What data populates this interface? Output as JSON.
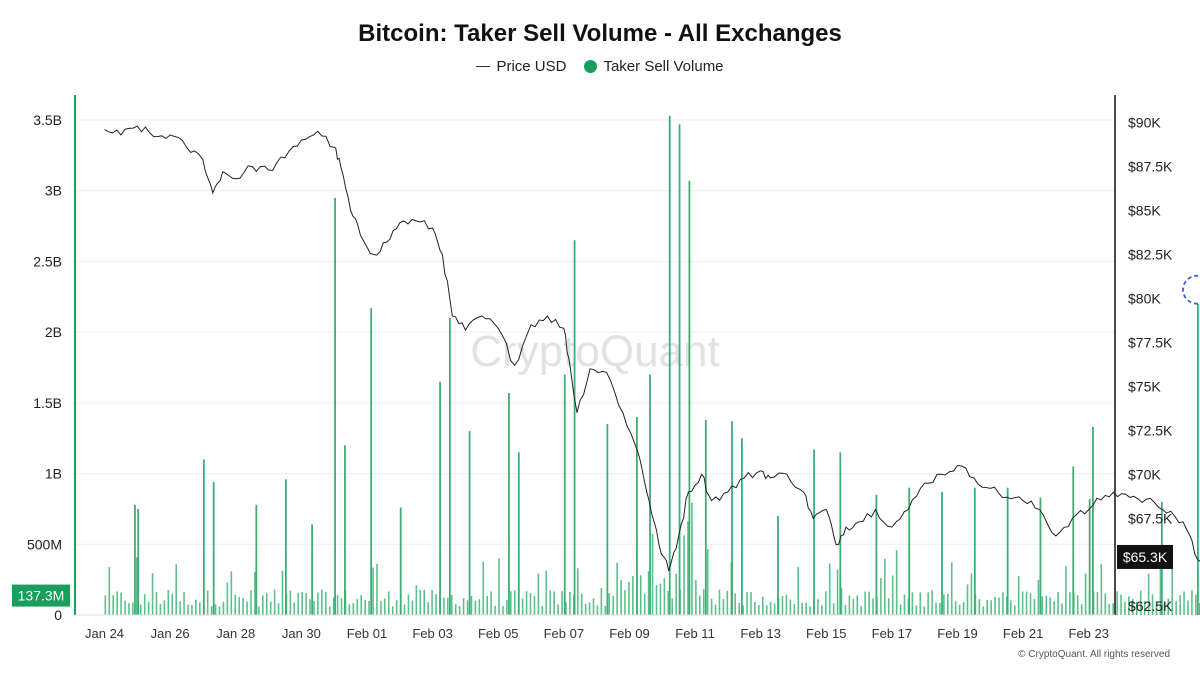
{
  "chart_data": {
    "type": "bar",
    "title": "Bitcoin: Taker Sell Volume - All Exchanges",
    "legend": [
      {
        "name": "Price USD",
        "style": "line",
        "color": "#222222"
      },
      {
        "name": "Taker Sell Volume",
        "style": "dot",
        "color": "#1a9e5c"
      }
    ],
    "legend_placement": "top-center",
    "grid": "horizontal",
    "watermark": "CryptoQuant",
    "copyright": "© CryptoQuant. All rights reserved",
    "x_tick_labels": [
      "Jan 24",
      "Jan 26",
      "Jan 28",
      "Jan 30",
      "Feb 01",
      "Feb 03",
      "Feb 05",
      "Feb 07",
      "Feb 09",
      "Feb 11",
      "Feb 13",
      "Feb 15",
      "Feb 17",
      "Feb 19",
      "Feb 21",
      "Feb 23"
    ],
    "x_range_days": [
      -0.9,
      30.8
    ],
    "left_axis": {
      "series": "Taker Sell Volume",
      "ticks": [
        {
          "value": 0,
          "label": "0"
        },
        {
          "value": 500000000,
          "label": "500M"
        },
        {
          "value": 1000000000,
          "label": "1B"
        },
        {
          "value": 1500000000,
          "label": "1.5B"
        },
        {
          "value": 2000000000,
          "label": "2B"
        },
        {
          "value": 2500000000,
          "label": "2.5B"
        },
        {
          "value": 3000000000,
          "label": "3B"
        },
        {
          "value": 3500000000,
          "label": "3.5B"
        }
      ],
      "range": [
        0,
        3500000000
      ],
      "current_value_label": "137.3M",
      "current_value": 137300000,
      "color": "#1a9e5c"
    },
    "right_axis": {
      "series": "Price USD",
      "ticks": [
        {
          "value": 62500,
          "label": "$62.5K"
        },
        {
          "value": 65000,
          "label": "$65K"
        },
        {
          "value": 67500,
          "label": "$67.5K"
        },
        {
          "value": 70000,
          "label": "$70K"
        },
        {
          "value": 72500,
          "label": "$72.5K"
        },
        {
          "value": 75000,
          "label": "$75K"
        },
        {
          "value": 77500,
          "label": "$77.5K"
        },
        {
          "value": 80000,
          "label": "$80K"
        },
        {
          "value": 82500,
          "label": "$82.5K"
        },
        {
          "value": 85000,
          "label": "$85K"
        },
        {
          "value": 87500,
          "label": "$87.5K"
        },
        {
          "value": 90000,
          "label": "$90K"
        }
      ],
      "range": [
        62000,
        90600
      ],
      "current_value_label": "$65.3K",
      "current_value": 65300
    },
    "series": [
      {
        "name": "Price USD",
        "kind": "line",
        "points": [
          [
            0,
            89600
          ],
          [
            0.5,
            89300
          ],
          [
            1,
            89800
          ],
          [
            1.5,
            89200
          ],
          [
            2,
            89300
          ],
          [
            2.5,
            88600
          ],
          [
            3,
            87900
          ],
          [
            3.3,
            86000
          ],
          [
            3.6,
            87200
          ],
          [
            4,
            86800
          ],
          [
            4.5,
            87500
          ],
          [
            5,
            87300
          ],
          [
            5.5,
            88000
          ],
          [
            6,
            89000
          ],
          [
            6.5,
            89500
          ],
          [
            7,
            88600
          ],
          [
            7.2,
            87500
          ],
          [
            7.5,
            85000
          ],
          [
            7.8,
            83600
          ],
          [
            8.2,
            82500
          ],
          [
            8.6,
            83200
          ],
          [
            9,
            84300
          ],
          [
            9.5,
            84400
          ],
          [
            10,
            84000
          ],
          [
            10.3,
            82500
          ],
          [
            10.6,
            79000
          ],
          [
            11,
            78200
          ],
          [
            11.5,
            79000
          ],
          [
            12,
            78300
          ],
          [
            12.5,
            76200
          ],
          [
            13,
            78500
          ],
          [
            13.5,
            79000
          ],
          [
            14,
            78300
          ],
          [
            14.2,
            76000
          ],
          [
            14.4,
            73500
          ],
          [
            14.8,
            76000
          ],
          [
            15.3,
            75800
          ],
          [
            15.8,
            73500
          ],
          [
            16.3,
            71000
          ],
          [
            16.6,
            68500
          ],
          [
            16.9,
            66000
          ],
          [
            17.2,
            64500
          ],
          [
            17.5,
            66500
          ],
          [
            17.8,
            69000
          ],
          [
            18.2,
            70000
          ],
          [
            18.5,
            68500
          ],
          [
            19,
            69000
          ],
          [
            19.5,
            69800
          ],
          [
            20,
            70200
          ],
          [
            20.3,
            69800
          ],
          [
            20.8,
            70000
          ],
          [
            21.3,
            69000
          ],
          [
            21.6,
            67500
          ],
          [
            22,
            68000
          ],
          [
            22.3,
            66000
          ],
          [
            22.6,
            67000
          ],
          [
            23,
            67300
          ],
          [
            23.5,
            68000
          ],
          [
            24,
            67000
          ],
          [
            24.5,
            68000
          ],
          [
            25,
            69500
          ],
          [
            25.5,
            70000
          ],
          [
            26,
            70500
          ],
          [
            26.5,
            69800
          ],
          [
            27,
            69200
          ],
          [
            27.5,
            68700
          ],
          [
            28,
            68500
          ],
          [
            28.5,
            68000
          ],
          [
            29,
            66500
          ],
          [
            29.5,
            67500
          ],
          [
            30,
            68000
          ],
          [
            30.5,
            68800
          ],
          [
            31,
            68900
          ],
          [
            31.5,
            68600
          ],
          [
            32,
            68400
          ],
          [
            32.5,
            67900
          ],
          [
            33,
            66800
          ],
          [
            33.3,
            65200
          ],
          [
            33.6,
            65300
          ]
        ]
      },
      {
        "name": "Taker Sell Volume",
        "kind": "bar",
        "color": "#1a9e5c",
        "spikes": [
          [
            0.9,
            780000000
          ],
          [
            1.0,
            750000000
          ],
          [
            3.0,
            1100000000
          ],
          [
            3.3,
            940000000
          ],
          [
            4.6,
            780000000
          ],
          [
            5.5,
            960000000
          ],
          [
            6.3,
            640000000
          ],
          [
            7.0,
            2950000000
          ],
          [
            7.3,
            1200000000
          ],
          [
            8.1,
            2170000000
          ],
          [
            9.0,
            760000000
          ],
          [
            10.2,
            1650000000
          ],
          [
            10.5,
            2100000000
          ],
          [
            11.1,
            1300000000
          ],
          [
            12.3,
            1570000000
          ],
          [
            12.6,
            1150000000
          ],
          [
            14.0,
            1700000000
          ],
          [
            14.3,
            2650000000
          ],
          [
            15.3,
            1350000000
          ],
          [
            16.2,
            1400000000
          ],
          [
            16.6,
            1700000000
          ],
          [
            17.2,
            3530000000
          ],
          [
            17.5,
            3470000000
          ],
          [
            17.8,
            3070000000
          ],
          [
            18.3,
            1380000000
          ],
          [
            19.1,
            1370000000
          ],
          [
            19.4,
            1250000000
          ],
          [
            20.5,
            700000000
          ],
          [
            21.6,
            1170000000
          ],
          [
            22.4,
            1150000000
          ],
          [
            23.5,
            850000000
          ],
          [
            24.5,
            900000000
          ],
          [
            25.5,
            870000000
          ],
          [
            26.5,
            900000000
          ],
          [
            27.5,
            900000000
          ],
          [
            28.5,
            830000000
          ],
          [
            29.5,
            1050000000
          ],
          [
            30.0,
            820000000
          ],
          [
            30.1,
            1330000000
          ],
          [
            32.2,
            800000000
          ],
          [
            33.3,
            2200000000
          ]
        ]
      }
    ],
    "highlight_marker": {
      "day": 33.3,
      "value": 2300000000,
      "style": "dashed-circle",
      "color": "#3b5bdb"
    }
  }
}
